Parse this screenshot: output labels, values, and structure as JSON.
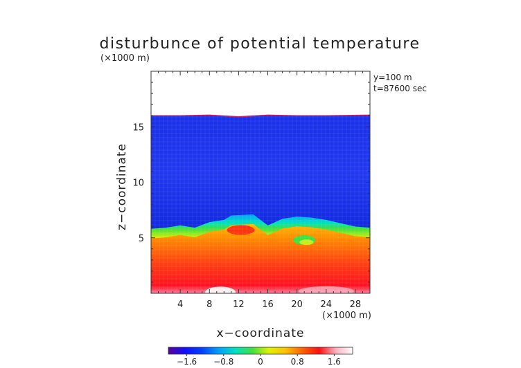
{
  "chart_data": {
    "type": "heatmap",
    "title": "disturbunce of potential temperature",
    "xlabel": "x−coordinate",
    "ylabel": "z−coordinate",
    "x_unit": "(×1000 m)",
    "z_unit": "(×1000 m)",
    "annotations": [
      "y=100 m",
      "t=87600 sec"
    ],
    "xlim": [
      0,
      30
    ],
    "ylim": [
      0,
      20
    ],
    "x_ticks": [
      4,
      8,
      12,
      16,
      20,
      24,
      28
    ],
    "x_tick_labels": [
      "4",
      "8",
      "12",
      "16",
      "20",
      "24",
      "28"
    ],
    "y_ticks": [
      5,
      10,
      15
    ],
    "y_tick_labels": [
      "5",
      "10",
      "15"
    ],
    "colorbar": {
      "range": [
        -2.0,
        2.0
      ],
      "ticks": [
        -1.6,
        -0.8,
        0,
        0.8,
        1.6
      ],
      "tick_labels": [
        "−1.6",
        "−0.8",
        "0",
        "0.8",
        "1.6"
      ],
      "colors": [
        "#5a00a0",
        "#1010ff",
        "#0040ff",
        "#00a0ff",
        "#00e0c0",
        "#40e040",
        "#e0f000",
        "#ffc000",
        "#ff6000",
        "#ff1010",
        "#ffb0c0",
        "#ffffff"
      ]
    },
    "field_profile": {
      "description_axis": "z in data units (×1000 m) vs value",
      "cloud_top_z": [
        [
          0,
          16.0
        ],
        [
          4,
          16.0
        ],
        [
          8,
          16.05
        ],
        [
          12,
          15.9
        ],
        [
          16,
          16.05
        ],
        [
          20,
          16.0
        ],
        [
          24,
          16.0
        ],
        [
          30,
          16.05
        ]
      ],
      "inversion_z": [
        [
          0,
          5.5
        ],
        [
          2,
          5.6
        ],
        [
          4,
          5.8
        ],
        [
          6,
          5.6
        ],
        [
          8,
          6.1
        ],
        [
          10,
          6.3
        ],
        [
          11,
          6.7
        ],
        [
          14,
          6.8
        ],
        [
          15,
          6.3
        ],
        [
          16,
          5.8
        ],
        [
          18,
          6.4
        ],
        [
          20,
          6.6
        ],
        [
          22,
          6.5
        ],
        [
          24,
          6.3
        ],
        [
          26,
          6.0
        ],
        [
          28,
          5.7
        ],
        [
          30,
          5.6
        ]
      ],
      "upper_value": -1.2,
      "lower_value_surface": 1.8,
      "lower_value_top": 0.8
    }
  }
}
